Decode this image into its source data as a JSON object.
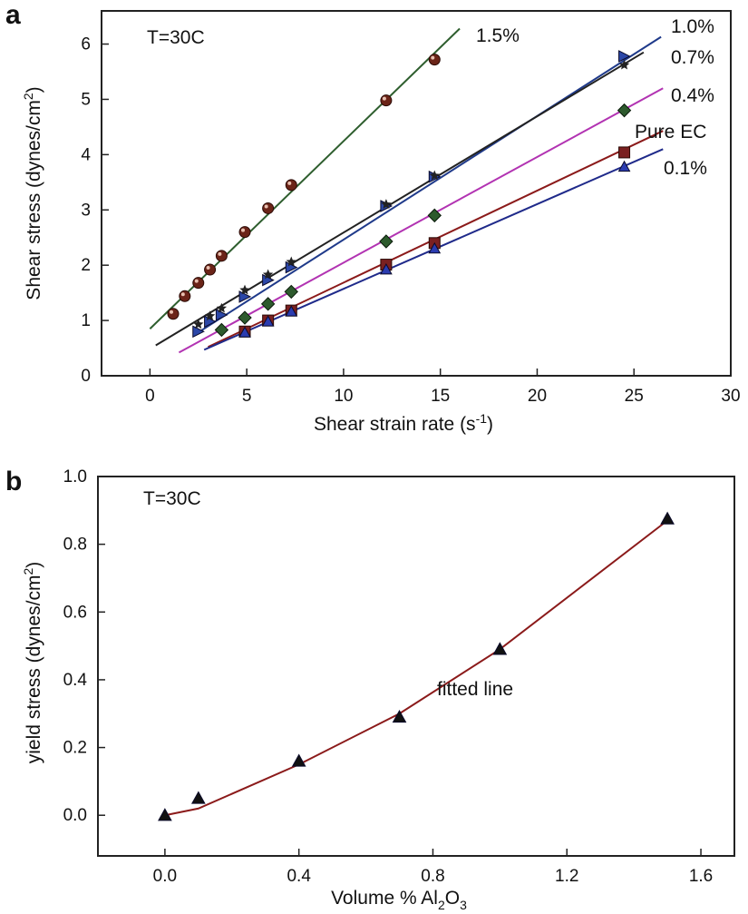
{
  "panels": [
    {
      "letter": "a",
      "annotation": "T=30C",
      "xlabel": "Shear strain rate (s",
      "xlabel_sup": "-1",
      "xlabel_end": ")",
      "ylabel": "Shear stress (dynes/cm",
      "ylabel_sup": "2",
      "ylabel_end": ")"
    },
    {
      "letter": "b",
      "annotation": "T=30C",
      "xlabel": "Volume % Al",
      "xlabel_sub1": "2",
      "xlabel_mid": "O",
      "xlabel_sub2": "3",
      "ylabel": "yield stress (dynes/cm",
      "ylabel_sup": "2",
      "ylabel_end": ")",
      "fit_label": "fitted line"
    }
  ],
  "chart_data": [
    {
      "type": "scatter",
      "xlim": [
        -2.5,
        30
      ],
      "ylim": [
        0,
        6.6
      ],
      "xticks": [
        0,
        5,
        10,
        15,
        20,
        25,
        30
      ],
      "yticks": [
        0,
        1,
        2,
        3,
        4,
        5,
        6
      ],
      "xtick_labels": [
        "0",
        "5",
        "10",
        "15",
        "20",
        "25",
        "30"
      ],
      "ytick_labels": [
        "0",
        "1",
        "2",
        "3",
        "4",
        "5",
        "6"
      ],
      "series": [
        {
          "name": "1.5%",
          "color": "#2e5e2e",
          "marker": "sphere",
          "marker_color": "#6b2418",
          "x": [
            1.2,
            1.8,
            2.5,
            3.1,
            3.7,
            4.9,
            6.1,
            7.3,
            12.2,
            14.7
          ],
          "y": [
            1.12,
            1.44,
            1.68,
            1.92,
            2.17,
            2.6,
            3.03,
            3.45,
            4.98,
            5.72
          ],
          "fit": [
            [
              0,
              0.85
            ],
            [
              16,
              6.28
            ]
          ]
        },
        {
          "name": "1.0%",
          "color": "#1f3a8a",
          "marker": "right-triangle",
          "marker_color": "#2b47a8",
          "x": [
            2.5,
            3.1,
            3.7,
            4.9,
            6.1,
            7.3,
            12.2,
            14.7,
            24.5
          ],
          "y": [
            0.8,
            0.98,
            1.1,
            1.43,
            1.73,
            1.96,
            3.07,
            3.6,
            5.78
          ],
          "fit": [
            [
              2.3,
              0.74
            ],
            [
              26.4,
              6.13
            ]
          ]
        },
        {
          "name": "0.7%",
          "color": "#222222",
          "marker": "star",
          "marker_color": "#222222",
          "x": [
            2.5,
            3.1,
            3.7,
            4.9,
            6.1,
            7.3,
            12.2,
            14.7,
            24.5
          ],
          "y": [
            0.93,
            1.08,
            1.22,
            1.55,
            1.83,
            2.06,
            3.1,
            3.62,
            5.62
          ],
          "fit": [
            [
              0.3,
              0.55
            ],
            [
              25.5,
              5.85
            ]
          ]
        },
        {
          "name": "0.4%",
          "color": "#b233b2",
          "marker": "diamond",
          "marker_color": "#2d5a2d",
          "x": [
            3.7,
            4.9,
            6.1,
            7.3,
            12.2,
            14.7,
            24.5
          ],
          "y": [
            0.83,
            1.05,
            1.3,
            1.52,
            2.43,
            2.9,
            4.8
          ],
          "fit": [
            [
              1.5,
              0.42
            ],
            [
              26.5,
              5.2
            ]
          ]
        },
        {
          "name": "Pure EC",
          "color": "#8b1a1a",
          "marker": "square",
          "marker_color": "#7a2020",
          "x": [
            4.9,
            6.1,
            7.3,
            12.2,
            14.7,
            24.5
          ],
          "y": [
            0.8,
            1.0,
            1.18,
            2.01,
            2.4,
            4.04
          ],
          "fit": [
            [
              3,
              0.52
            ],
            [
              26.5,
              4.43
            ]
          ]
        },
        {
          "name": "0.1%",
          "color": "#1f2a8a",
          "marker": "triangle",
          "marker_color": "#2b3cb0",
          "x": [
            4.9,
            6.1,
            7.3,
            12.2,
            14.7,
            24.5
          ],
          "y": [
            0.78,
            0.98,
            1.16,
            1.92,
            2.3,
            3.78
          ],
          "fit": [
            [
              2.8,
              0.47
            ],
            [
              26.5,
              4.1
            ]
          ]
        }
      ]
    },
    {
      "type": "scatter",
      "xlim": [
        -0.2,
        1.7
      ],
      "ylim": [
        -0.12,
        1.0
      ],
      "xticks": [
        0,
        0.4,
        0.8,
        1.2,
        1.6
      ],
      "yticks": [
        0,
        0.2,
        0.4,
        0.6,
        0.8,
        1.0
      ],
      "xtick_labels": [
        "0.0",
        "0.4",
        "0.8",
        "1.2",
        "1.6"
      ],
      "ytick_labels": [
        "0.0",
        "0.2",
        "0.4",
        "0.6",
        "0.8",
        "1.0"
      ],
      "series": [
        {
          "name": "",
          "color": "#111111",
          "marker": "triangle",
          "marker_color": "#111111",
          "x": [
            0,
            0.1,
            0.4,
            0.7,
            1.0,
            1.5
          ],
          "y": [
            0.0,
            0.05,
            0.16,
            0.29,
            0.49,
            0.875
          ]
        },
        {
          "name": "fitted line",
          "color": "#8b1a1a",
          "marker": "none",
          "x": [
            0,
            0.1,
            0.4,
            0.7,
            1.0,
            1.5
          ],
          "y": [
            0.0,
            0.02,
            0.15,
            0.3,
            0.49,
            0.87
          ]
        }
      ]
    }
  ]
}
